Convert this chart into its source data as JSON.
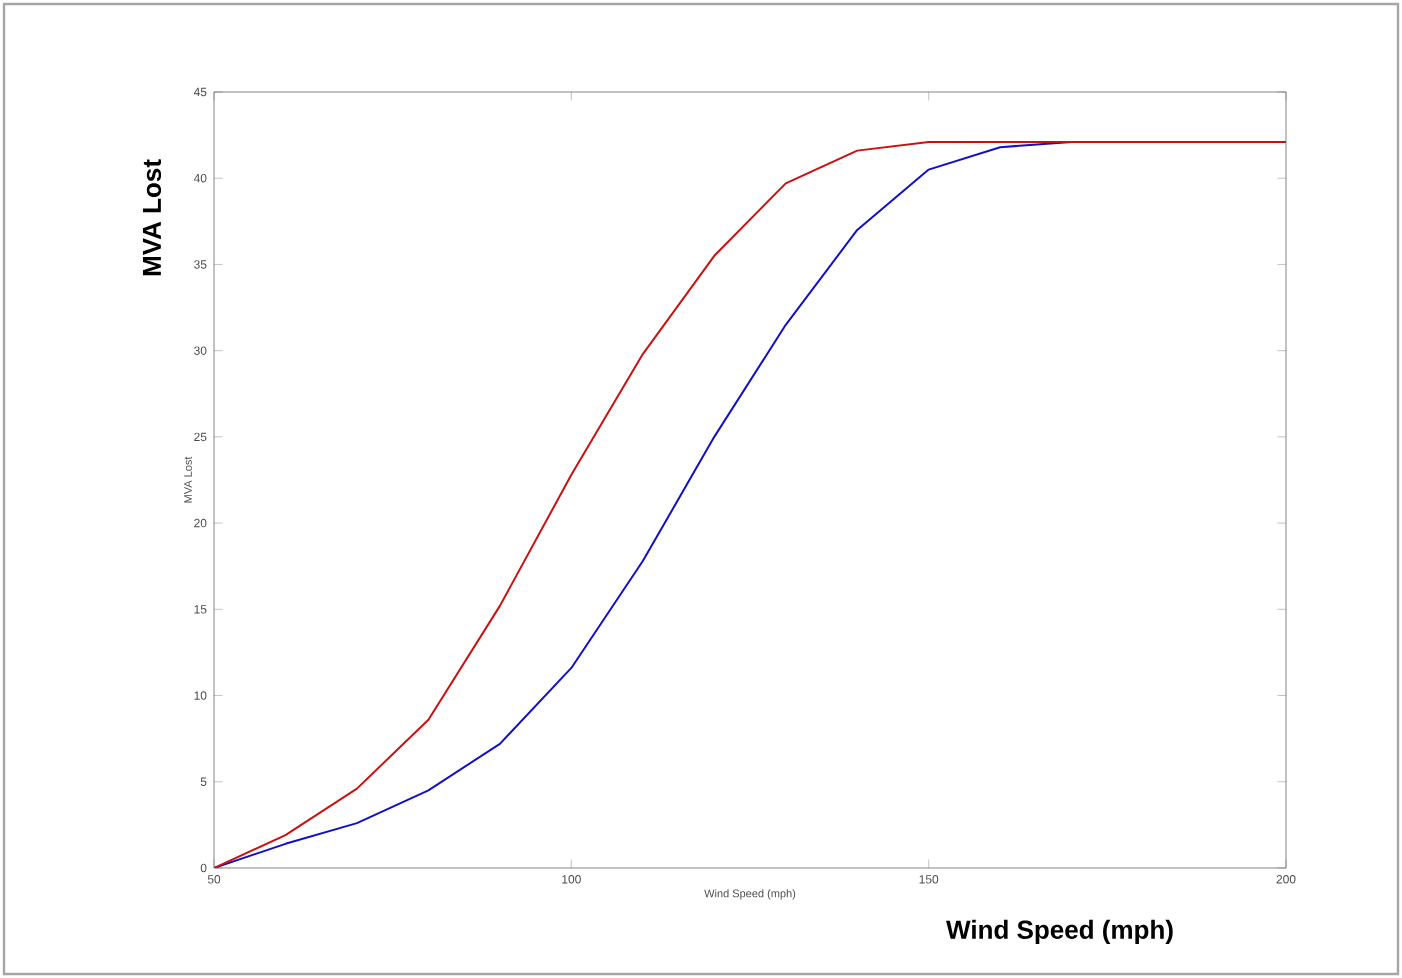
{
  "chart_data": {
    "type": "line",
    "xlabel": "Wind Speed (mph)",
    "ylabel": "MVA Lost",
    "x": [
      50,
      60,
      70,
      80,
      90,
      100,
      110,
      120,
      130,
      140,
      150,
      160,
      170,
      180,
      190,
      200
    ],
    "series": [
      {
        "color": "#1010c8",
        "values": [
          0,
          1.4,
          2.6,
          4.5,
          7.2,
          11.6,
          17.8,
          25,
          31.5,
          37,
          40.5,
          41.8,
          42.1,
          null,
          null,
          null
        ]
      },
      {
        "color": "#cc1010",
        "values": [
          0,
          1.9,
          4.6,
          8.6,
          15.2,
          22.8,
          29.8,
          35.5,
          39.7,
          41.6,
          42.1,
          42.1,
          42.1,
          42.1,
          42.1,
          42.1
        ]
      }
    ],
    "xlim": [
      50,
      200
    ],
    "ylim": [
      0,
      45
    ],
    "xticks": [
      50,
      100,
      150,
      200
    ],
    "yticks": [
      0,
      5,
      10,
      15,
      20,
      25,
      30,
      35,
      40,
      45
    ],
    "grid": false,
    "marker": "none",
    "line_style": "solid",
    "annotations": [
      "MVA Lost",
      "Wind Speed (mph)"
    ]
  }
}
